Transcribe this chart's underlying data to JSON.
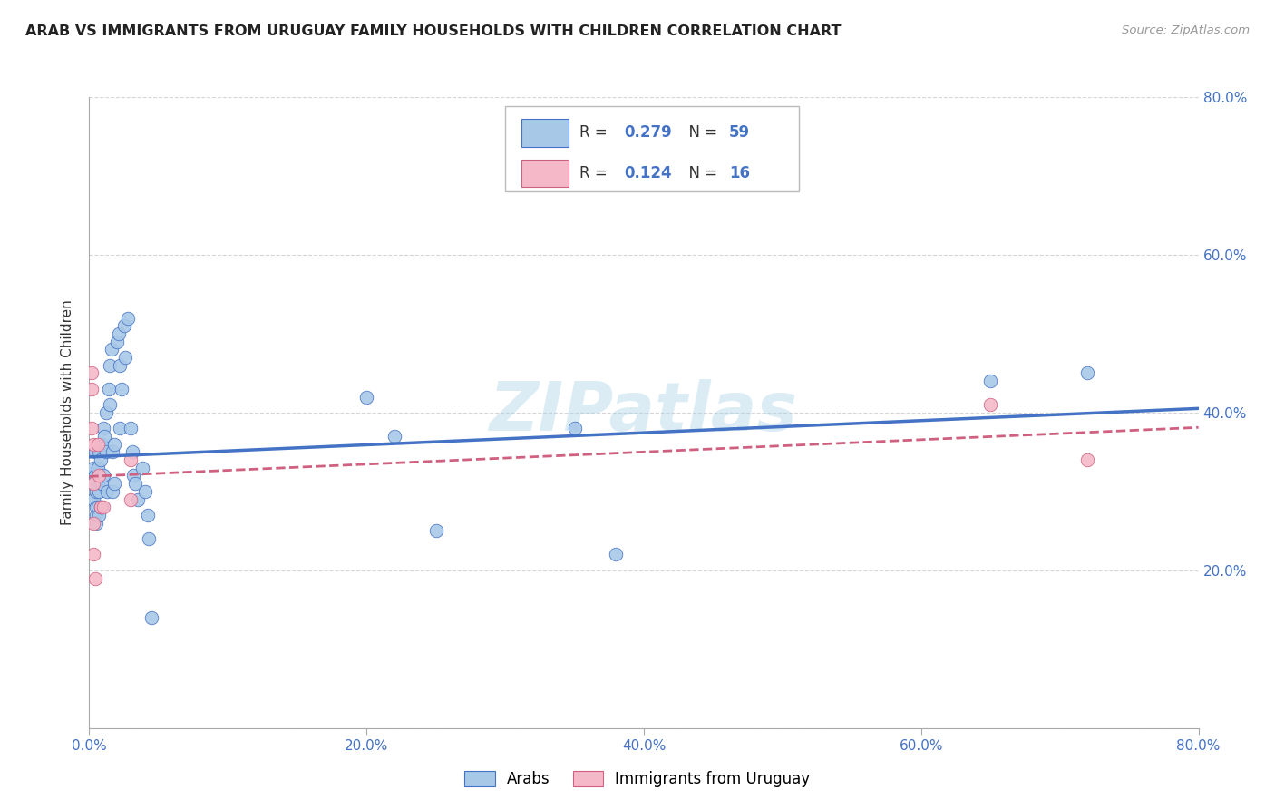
{
  "title": "ARAB VS IMMIGRANTS FROM URUGUAY FAMILY HOUSEHOLDS WITH CHILDREN CORRELATION CHART",
  "source": "Source: ZipAtlas.com",
  "ylabel_label": "Family Households with Children",
  "legend1_label": "Arabs",
  "legend2_label": "Immigrants from Uruguay",
  "r1": 0.279,
  "n1": 59,
  "r2": 0.124,
  "n2": 16,
  "color_arab": "#a8c8e8",
  "color_uruguay": "#f4b8c8",
  "color_arab_line": "#4472c4",
  "color_uruguay_line": "#d06080",
  "xlim": [
    0,
    0.8
  ],
  "ylim": [
    0,
    0.8
  ],
  "arab_x": [
    0.003,
    0.003,
    0.003,
    0.004,
    0.004,
    0.005,
    0.005,
    0.005,
    0.005,
    0.006,
    0.006,
    0.006,
    0.007,
    0.007,
    0.007,
    0.008,
    0.008,
    0.009,
    0.009,
    0.009,
    0.01,
    0.01,
    0.011,
    0.012,
    0.012,
    0.013,
    0.014,
    0.015,
    0.015,
    0.016,
    0.017,
    0.017,
    0.018,
    0.018,
    0.02,
    0.021,
    0.022,
    0.022,
    0.023,
    0.025,
    0.026,
    0.028,
    0.03,
    0.031,
    0.032,
    0.033,
    0.035,
    0.038,
    0.04,
    0.042,
    0.043,
    0.045,
    0.2,
    0.22,
    0.25,
    0.35,
    0.38,
    0.65,
    0.72
  ],
  "arab_y": [
    0.33,
    0.31,
    0.29,
    0.32,
    0.35,
    0.3,
    0.28,
    0.27,
    0.26,
    0.33,
    0.31,
    0.28,
    0.35,
    0.3,
    0.27,
    0.34,
    0.28,
    0.36,
    0.31,
    0.28,
    0.38,
    0.32,
    0.37,
    0.4,
    0.35,
    0.3,
    0.43,
    0.46,
    0.41,
    0.48,
    0.35,
    0.3,
    0.36,
    0.31,
    0.49,
    0.5,
    0.46,
    0.38,
    0.43,
    0.51,
    0.47,
    0.52,
    0.38,
    0.35,
    0.32,
    0.31,
    0.29,
    0.33,
    0.3,
    0.27,
    0.24,
    0.14,
    0.42,
    0.37,
    0.25,
    0.38,
    0.22,
    0.44,
    0.45
  ],
  "uruguay_x": [
    0.002,
    0.002,
    0.002,
    0.003,
    0.003,
    0.003,
    0.003,
    0.004,
    0.006,
    0.007,
    0.008,
    0.01,
    0.03,
    0.03,
    0.65,
    0.72
  ],
  "uruguay_y": [
    0.45,
    0.43,
    0.38,
    0.36,
    0.31,
    0.26,
    0.22,
    0.19,
    0.36,
    0.32,
    0.28,
    0.28,
    0.34,
    0.29,
    0.41,
    0.34
  ],
  "watermark": "ZIPatlas",
  "background_color": "#ffffff",
  "grid_color": "#cccccc"
}
